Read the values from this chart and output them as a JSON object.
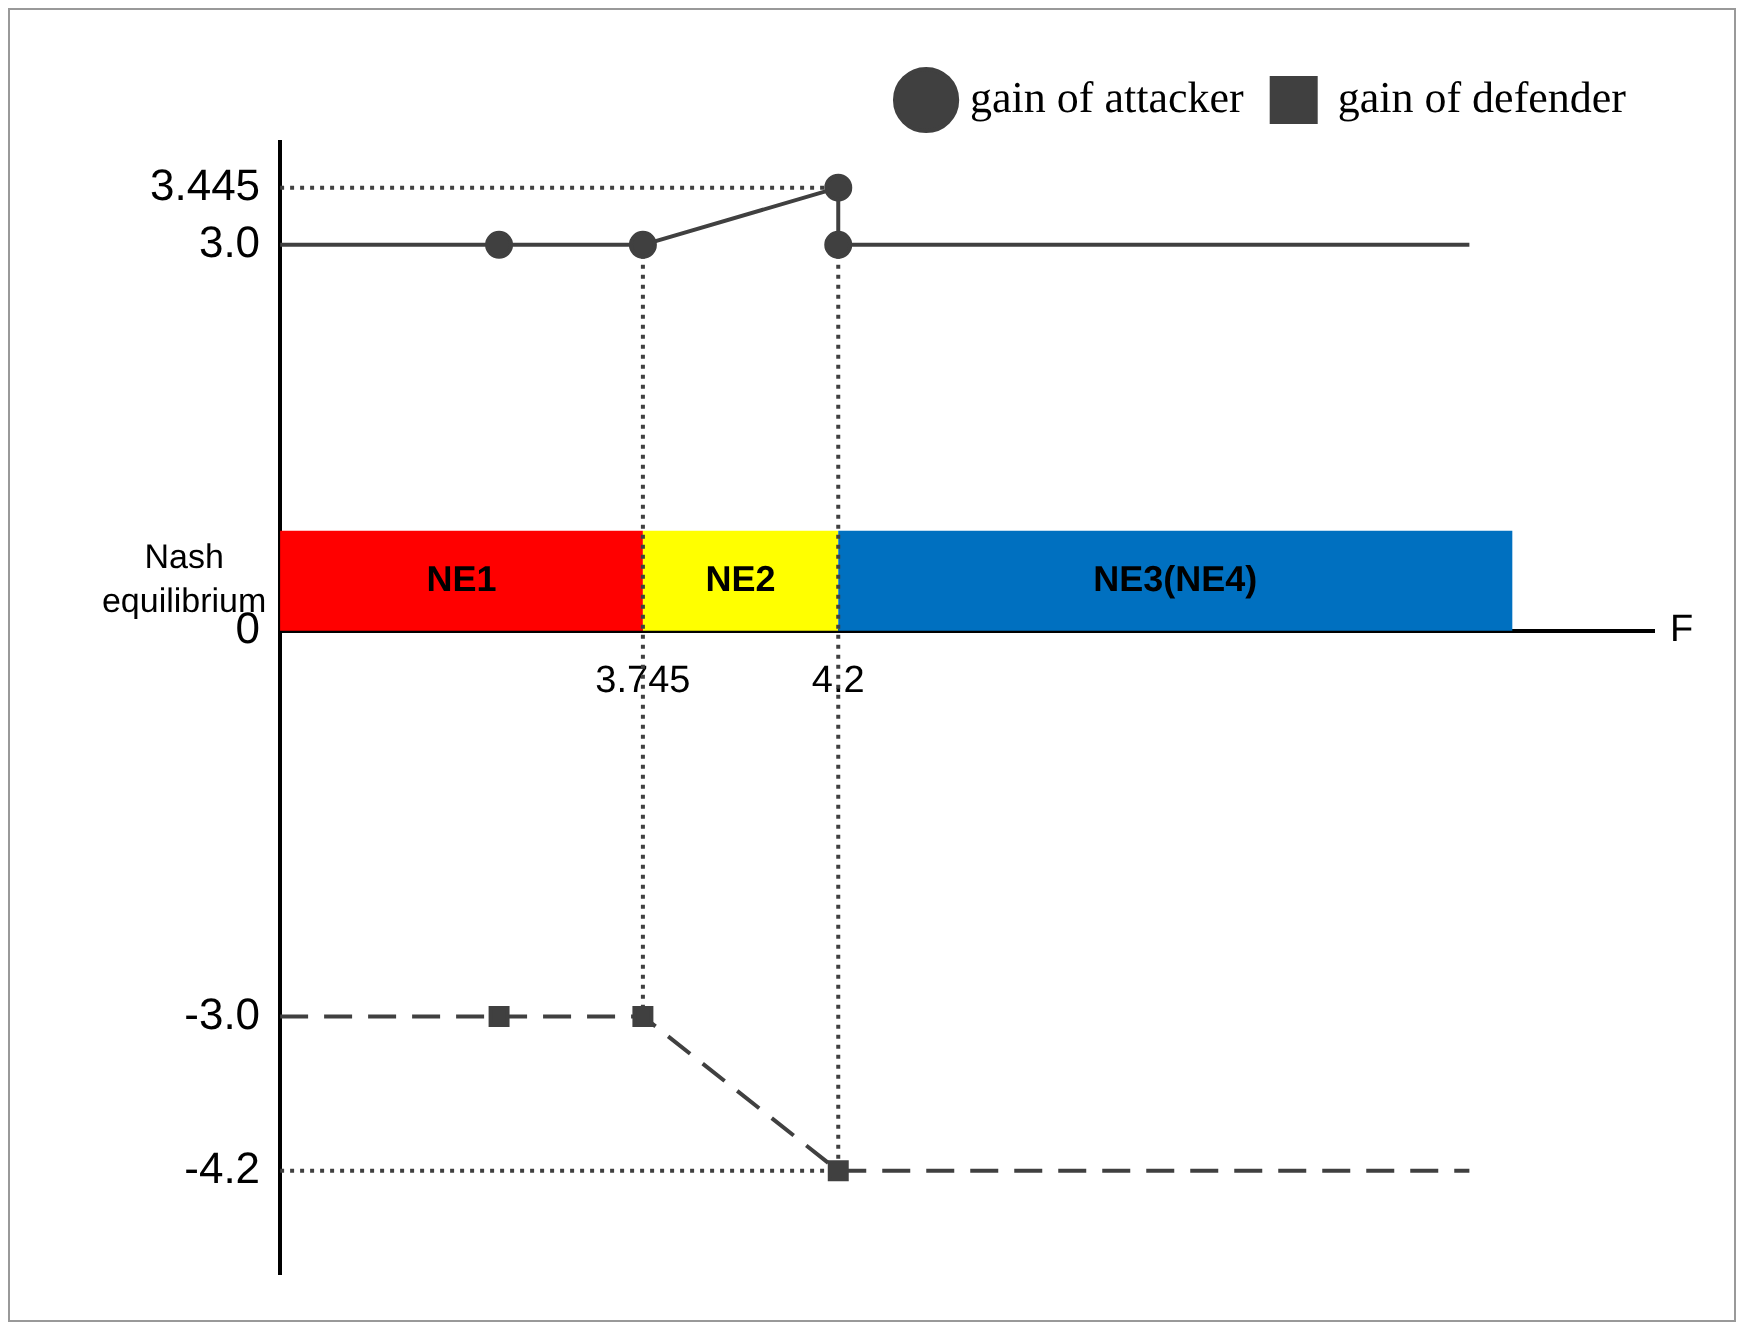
{
  "chart_data": {
    "type": "line",
    "xlabel": "F",
    "xlim": [
      2.9,
      6.1
    ],
    "xticks": [
      3.745,
      4.2
    ],
    "ylim": [
      -5,
      3.8
    ],
    "yticks": [
      3.445,
      {
        "value": 3,
        "label": "3.0"
      },
      0,
      {
        "value": -3,
        "label": "-3.0"
      },
      -4.2
    ],
    "grid": false,
    "legend": "top right",
    "annotations": [
      "Nash equilibrium"
    ],
    "bands": [
      {
        "axis": "x",
        "from": 2.9,
        "to": 3.745,
        "label": "NE1",
        "color": "#ff0000"
      },
      {
        "axis": "x",
        "from": 3.745,
        "to": 4.2,
        "label": "NE2",
        "color": "#ffff00"
      },
      {
        "axis": "x",
        "from": 4.2,
        "to": 5.77,
        "label": "NE3(NE4)",
        "color": "#0070c0"
      }
    ],
    "series": [
      {
        "name": "gain of attacker",
        "color": "#404040",
        "marker": "circle",
        "line_style": "solid",
        "x": [
          3.41,
          3.745,
          4.2,
          4.2
        ],
        "values": [
          3,
          3,
          3.445,
          3
        ]
      },
      {
        "name": "gain of defender",
        "color": "#404040",
        "marker": "square",
        "line_style": "dashed",
        "x": [
          3.41,
          3.745,
          4.2
        ],
        "values": [
          -3,
          -3,
          -4.2
        ]
      },
      {
        "color": "#404040",
        "marker": "none",
        "line_style": "solid",
        "x": [
          2.9,
          3.41
        ],
        "values": [
          3,
          3
        ]
      },
      {
        "color": "#404040",
        "marker": "none",
        "line_style": "solid",
        "x": [
          4.2,
          5.67
        ],
        "values": [
          3,
          3
        ]
      },
      {
        "color": "#404040",
        "marker": "none",
        "line_style": "dashed",
        "x": [
          2.9,
          3.41
        ],
        "values": [
          -3,
          -3
        ]
      },
      {
        "color": "#404040",
        "marker": "none",
        "line_style": "dashed",
        "x": [
          4.2,
          5.67
        ],
        "values": [
          -4.2,
          -4.2
        ]
      },
      {
        "color": "#404040",
        "marker": "none",
        "line_style": "dotted",
        "x": [
          2.9,
          4.2
        ],
        "values": [
          3.445,
          3.445
        ]
      },
      {
        "color": "#404040",
        "marker": "none",
        "line_style": "dotted",
        "x": [
          3.745,
          3.745
        ],
        "values": [
          3,
          -3
        ]
      },
      {
        "color": "#404040",
        "marker": "none",
        "line_style": "dotted",
        "x": [
          4.2,
          4.2
        ],
        "values": [
          3,
          -4.2
        ]
      },
      {
        "color": "#404040",
        "marker": "none",
        "line_style": "dotted",
        "x": [
          2.9,
          4.2
        ],
        "values": [
          -4.2,
          -4.2
        ]
      }
    ]
  }
}
